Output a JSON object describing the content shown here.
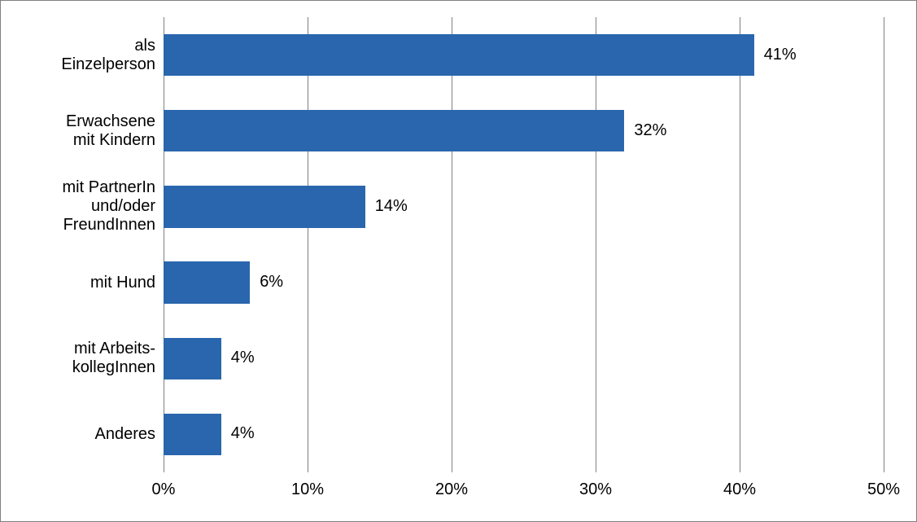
{
  "chart": {
    "type": "bar-horizontal",
    "background_color": "#ffffff",
    "border_color": "#808080",
    "grid_color": "#808080",
    "bar_color": "#2a66ad",
    "label_color": "#000000",
    "label_fontsize_pt": 15,
    "value_fontsize_pt": 15,
    "tick_fontsize_pt": 15,
    "xlim": [
      0,
      50
    ],
    "xtick_step": 10,
    "xtick_labels": [
      "0%",
      "10%",
      "20%",
      "30%",
      "40%",
      "50%"
    ],
    "bar_thickness_ratio": 0.55,
    "categories": [
      {
        "label": "als\nEinzelperson",
        "value": 41,
        "value_label": "41%"
      },
      {
        "label": "Erwachsene\nmit Kindern",
        "value": 32,
        "value_label": "32%"
      },
      {
        "label": "mit PartnerIn\nund/oder\nFreundInnen",
        "value": 14,
        "value_label": "14%"
      },
      {
        "label": "mit Hund",
        "value": 6,
        "value_label": "6%"
      },
      {
        "label": "mit Arbeits-\nkollegInnen",
        "value": 4,
        "value_label": "4%"
      },
      {
        "label": "Anderes",
        "value": 4,
        "value_label": "4%"
      }
    ]
  }
}
